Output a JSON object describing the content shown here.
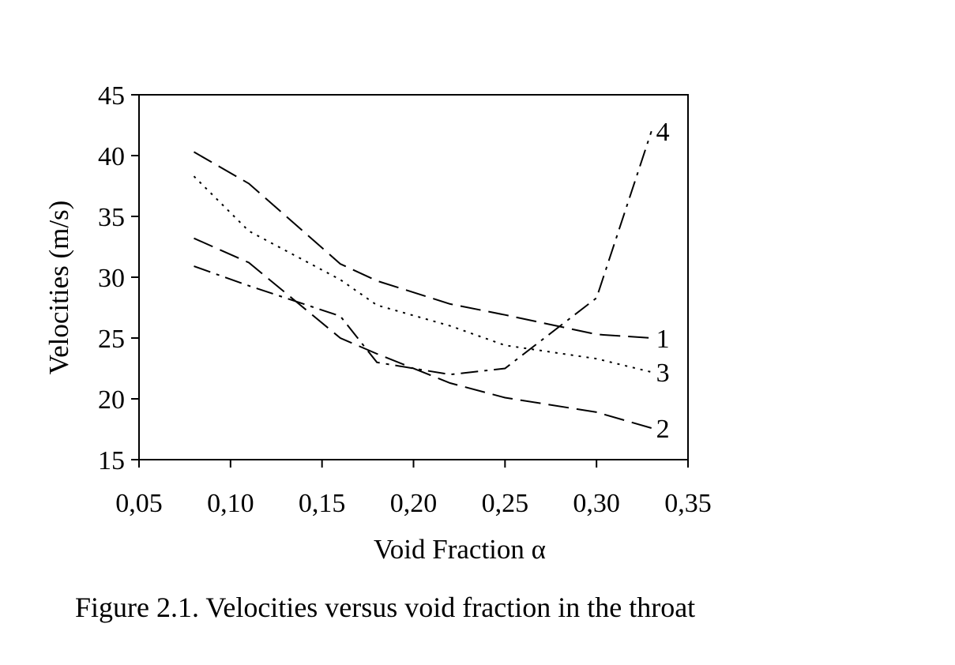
{
  "caption": "Figure 2.1. Velocities versus void fraction in the throat",
  "chart_data": {
    "type": "line",
    "xlabel": "Void Fraction α",
    "ylabel": "Velocities (m/s)",
    "xlim": [
      0.05,
      0.35
    ],
    "ylim": [
      15,
      45
    ],
    "x_ticks": [
      0.05,
      0.1,
      0.15,
      0.2,
      0.25,
      0.3,
      0.35
    ],
    "x_tick_labels": [
      "0,05",
      "0,10",
      "0,15",
      "0,20",
      "0,25",
      "0,30",
      "0,35"
    ],
    "y_ticks": [
      15,
      20,
      25,
      30,
      35,
      40,
      45
    ],
    "y_tick_labels": [
      "15",
      "20",
      "25",
      "30",
      "35",
      "40",
      "45"
    ],
    "grid": false,
    "legend": "inline labels at line ends",
    "series": [
      {
        "name": "1",
        "dash": "long-dash",
        "x": [
          0.08,
          0.11,
          0.16,
          0.18,
          0.22,
          0.25,
          0.3,
          0.33
        ],
        "y": [
          40.3,
          37.7,
          31.1,
          29.7,
          27.8,
          26.9,
          25.3,
          25.0
        ]
      },
      {
        "name": "2",
        "dash": "long-dash",
        "x": [
          0.08,
          0.11,
          0.16,
          0.18,
          0.22,
          0.25,
          0.3,
          0.33
        ],
        "y": [
          33.2,
          31.2,
          25.0,
          23.7,
          21.3,
          20.1,
          18.9,
          17.6
        ]
      },
      {
        "name": "3",
        "dash": "dotted",
        "x": [
          0.08,
          0.11,
          0.16,
          0.18,
          0.22,
          0.25,
          0.3,
          0.33
        ],
        "y": [
          38.3,
          33.8,
          29.8,
          27.7,
          26.0,
          24.4,
          23.3,
          22.2
        ]
      },
      {
        "name": "4",
        "dash": "dash-dot",
        "x": [
          0.08,
          0.11,
          0.16,
          0.18,
          0.22,
          0.25,
          0.3,
          0.33
        ],
        "y": [
          30.9,
          29.3,
          26.8,
          23.0,
          22.0,
          22.5,
          28.3,
          42.0
        ]
      }
    ]
  }
}
